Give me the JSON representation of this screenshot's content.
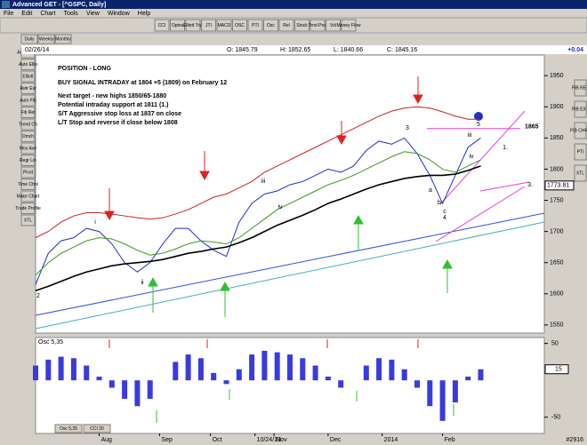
{
  "window": {
    "title": "Advanced GET - [^GSPC, Daily]"
  },
  "menu": [
    "File",
    "Edit",
    "Chart",
    "Tools",
    "View",
    "Window",
    "Help"
  ],
  "toolbar": [
    "CCI",
    "Optns",
    "Elliott Trig",
    "JTI",
    "MACD",
    "OSC",
    "PTI",
    "Osc",
    "Rel",
    "Stock",
    "Trnd Prof",
    "Vol",
    "Money Flow"
  ],
  "tabs": [
    "Daily",
    "Weekly",
    "Monthly"
  ],
  "left_tools": [
    "Auto Trend",
    "Auto Ellio",
    "Elliott",
    "Retr Ext",
    "Auto Fib",
    "Fib Ret",
    "Trend Ch",
    "Dmch",
    "Mov Ave",
    "Regr Lin",
    "Pivot",
    "Time Chnl",
    "Make Chart",
    "Trade Profile",
    "XTL"
  ],
  "right_tools": [
    "FIB RET",
    "FIB EXT",
    "FIB CHNL",
    "PTI",
    "XTL"
  ],
  "info": {
    "date": "02/26/14",
    "open": "O: 1845.79",
    "high": "H: 1852.65",
    "low": "L: 1840.66",
    "close": "C: 1845.16",
    "change": "+0.04"
  },
  "bottom_tabs": [
    "Osc 5,35",
    "CCI 20"
  ],
  "status": "#2916",
  "chart_data": [
    {
      "type": "line",
      "annotations": [
        "POSITION - LONG",
        "BUY SIGNAL INTRADAY at 1804 +5 (1809) on February 12",
        "Next target - new highs 1850/65-1880",
        "Potential intraday support at 1811 (1.)",
        "S/T Aggressive stop loss at 1837 on close",
        "L/T Stop and reverse if close below 1808"
      ],
      "wave_labels": [
        "2",
        "i",
        "ii",
        "iii",
        "iv",
        "3",
        "a",
        "b",
        "c",
        "4",
        "iii",
        "iv",
        "5",
        "1.",
        "3."
      ],
      "target_line": 1865,
      "marker": 1773.81,
      "x": [
        0,
        4,
        8,
        12,
        16,
        20,
        24,
        28,
        32,
        36,
        40,
        44,
        48,
        52,
        56,
        60,
        64,
        68,
        72,
        76,
        80,
        84,
        88,
        92,
        96,
        100,
        104,
        108,
        112,
        116,
        120,
        124,
        128,
        132,
        136,
        140
      ],
      "series": [
        {
          "color": "#1f2fd0",
          "values": [
            1615,
            1665,
            1685,
            1690,
            1705,
            1700,
            1680,
            1650,
            1635,
            1650,
            1680,
            1705,
            1705,
            1685,
            1670,
            1660,
            1715,
            1745,
            1760,
            1765,
            1775,
            1780,
            1790,
            1800,
            1795,
            1805,
            1830,
            1845,
            1840,
            1850,
            1825,
            1790,
            1745,
            1790,
            1835,
            1850
          ]
        },
        {
          "color": "#000000",
          "values": [
            1605,
            1612,
            1620,
            1628,
            1635,
            1640,
            1645,
            1648,
            1650,
            1652,
            1655,
            1660,
            1665,
            1668,
            1672,
            1675,
            1682,
            1690,
            1700,
            1710,
            1718,
            1726,
            1735,
            1745,
            1752,
            1760,
            1768,
            1775,
            1780,
            1785,
            1788,
            1790,
            1790,
            1792,
            1798,
            1805
          ]
        },
        {
          "color": "#3a9a1a",
          "values": [
            1630,
            1650,
            1665,
            1675,
            1685,
            1690,
            1688,
            1680,
            1670,
            1662,
            1665,
            1672,
            1680,
            1685,
            1683,
            1680,
            1690,
            1705,
            1720,
            1735,
            1745,
            1755,
            1765,
            1775,
            1782,
            1790,
            1800,
            1810,
            1820,
            1828,
            1825,
            1815,
            1800,
            1795,
            1805,
            1815
          ]
        },
        {
          "color": "#d02020",
          "values": [
            1690,
            1700,
            1715,
            1725,
            1730,
            1730,
            1728,
            1725,
            1722,
            1720,
            1722,
            1728,
            1735,
            1745,
            1755,
            1760,
            1770,
            1780,
            1795,
            1805,
            1815,
            1825,
            1835,
            1845,
            1855,
            1865,
            1875,
            1885,
            1893,
            1898,
            1900,
            1898,
            1892,
            1885,
            1880,
            1880
          ]
        }
      ],
      "xlim": [
        0,
        160
      ],
      "ylim": [
        1537,
        1983
      ],
      "yticks": [
        1550,
        1600,
        1650,
        1700,
        1750,
        1800,
        1850,
        1900,
        1950
      ],
      "xticks": [
        {
          "value": 20,
          "label": "Aug"
        },
        {
          "value": 39,
          "label": "Sep"
        },
        {
          "value": 55,
          "label": "Oct"
        },
        {
          "value": 69,
          "label": "10/24/13"
        },
        {
          "value": 75,
          "label": "Nov"
        },
        {
          "value": 92,
          "label": "Dec"
        },
        {
          "value": 109,
          "label": "2014"
        },
        {
          "value": 128,
          "label": "Feb"
        }
      ]
    },
    {
      "type": "bar",
      "title": "Osc 5,35",
      "color": "#3a3ae0",
      "x": [
        0,
        4,
        8,
        12,
        16,
        20,
        24,
        28,
        32,
        36,
        40,
        44,
        48,
        52,
        56,
        60,
        64,
        68,
        72,
        76,
        80,
        84,
        88,
        92,
        96,
        100,
        104,
        108,
        112,
        116,
        120,
        124,
        128,
        132,
        136,
        140
      ],
      "values": [
        20,
        28,
        32,
        30,
        20,
        5,
        -10,
        -25,
        -35,
        -25,
        0,
        25,
        35,
        30,
        10,
        -5,
        15,
        35,
        40,
        38,
        35,
        30,
        20,
        5,
        -10,
        0,
        20,
        30,
        28,
        15,
        -10,
        -35,
        -55,
        -30,
        5,
        15
      ],
      "last_value": 15,
      "xlim": [
        0,
        160
      ],
      "ylim": [
        -72,
        58
      ],
      "yticks": [
        -50,
        50
      ]
    }
  ]
}
